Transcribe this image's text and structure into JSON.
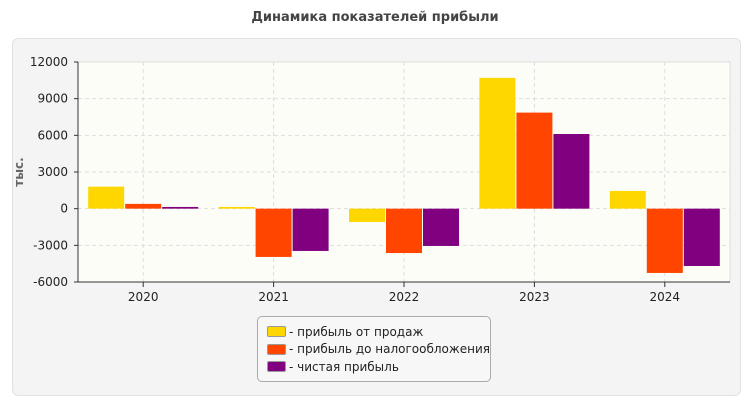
{
  "chart_data": {
    "type": "bar",
    "title": "Динамика показателей прибыли",
    "ylabel": "тыс.",
    "xlabel": "",
    "ylim": [
      -6000,
      12000
    ],
    "yticks": [
      -6000,
      -3000,
      0,
      3000,
      6000,
      9000,
      12000
    ],
    "grid": true,
    "legend": "bottom",
    "categories": [
      "2020",
      "2021",
      "2022",
      "2023",
      "2024"
    ],
    "series": [
      {
        "name": "- прибыль от продаж",
        "color": "#FFD700",
        "values": [
          1800,
          140,
          -1090,
          10700,
          1450
        ]
      },
      {
        "name": "- прибыль до налогообложения",
        "color": "#FF4500",
        "values": [
          390,
          -3950,
          -3630,
          7860,
          -5260
        ]
      },
      {
        "name": "- чистая прибыль",
        "color": "#800080",
        "values": [
          140,
          -3460,
          -3050,
          6110,
          -4690
        ]
      }
    ]
  }
}
